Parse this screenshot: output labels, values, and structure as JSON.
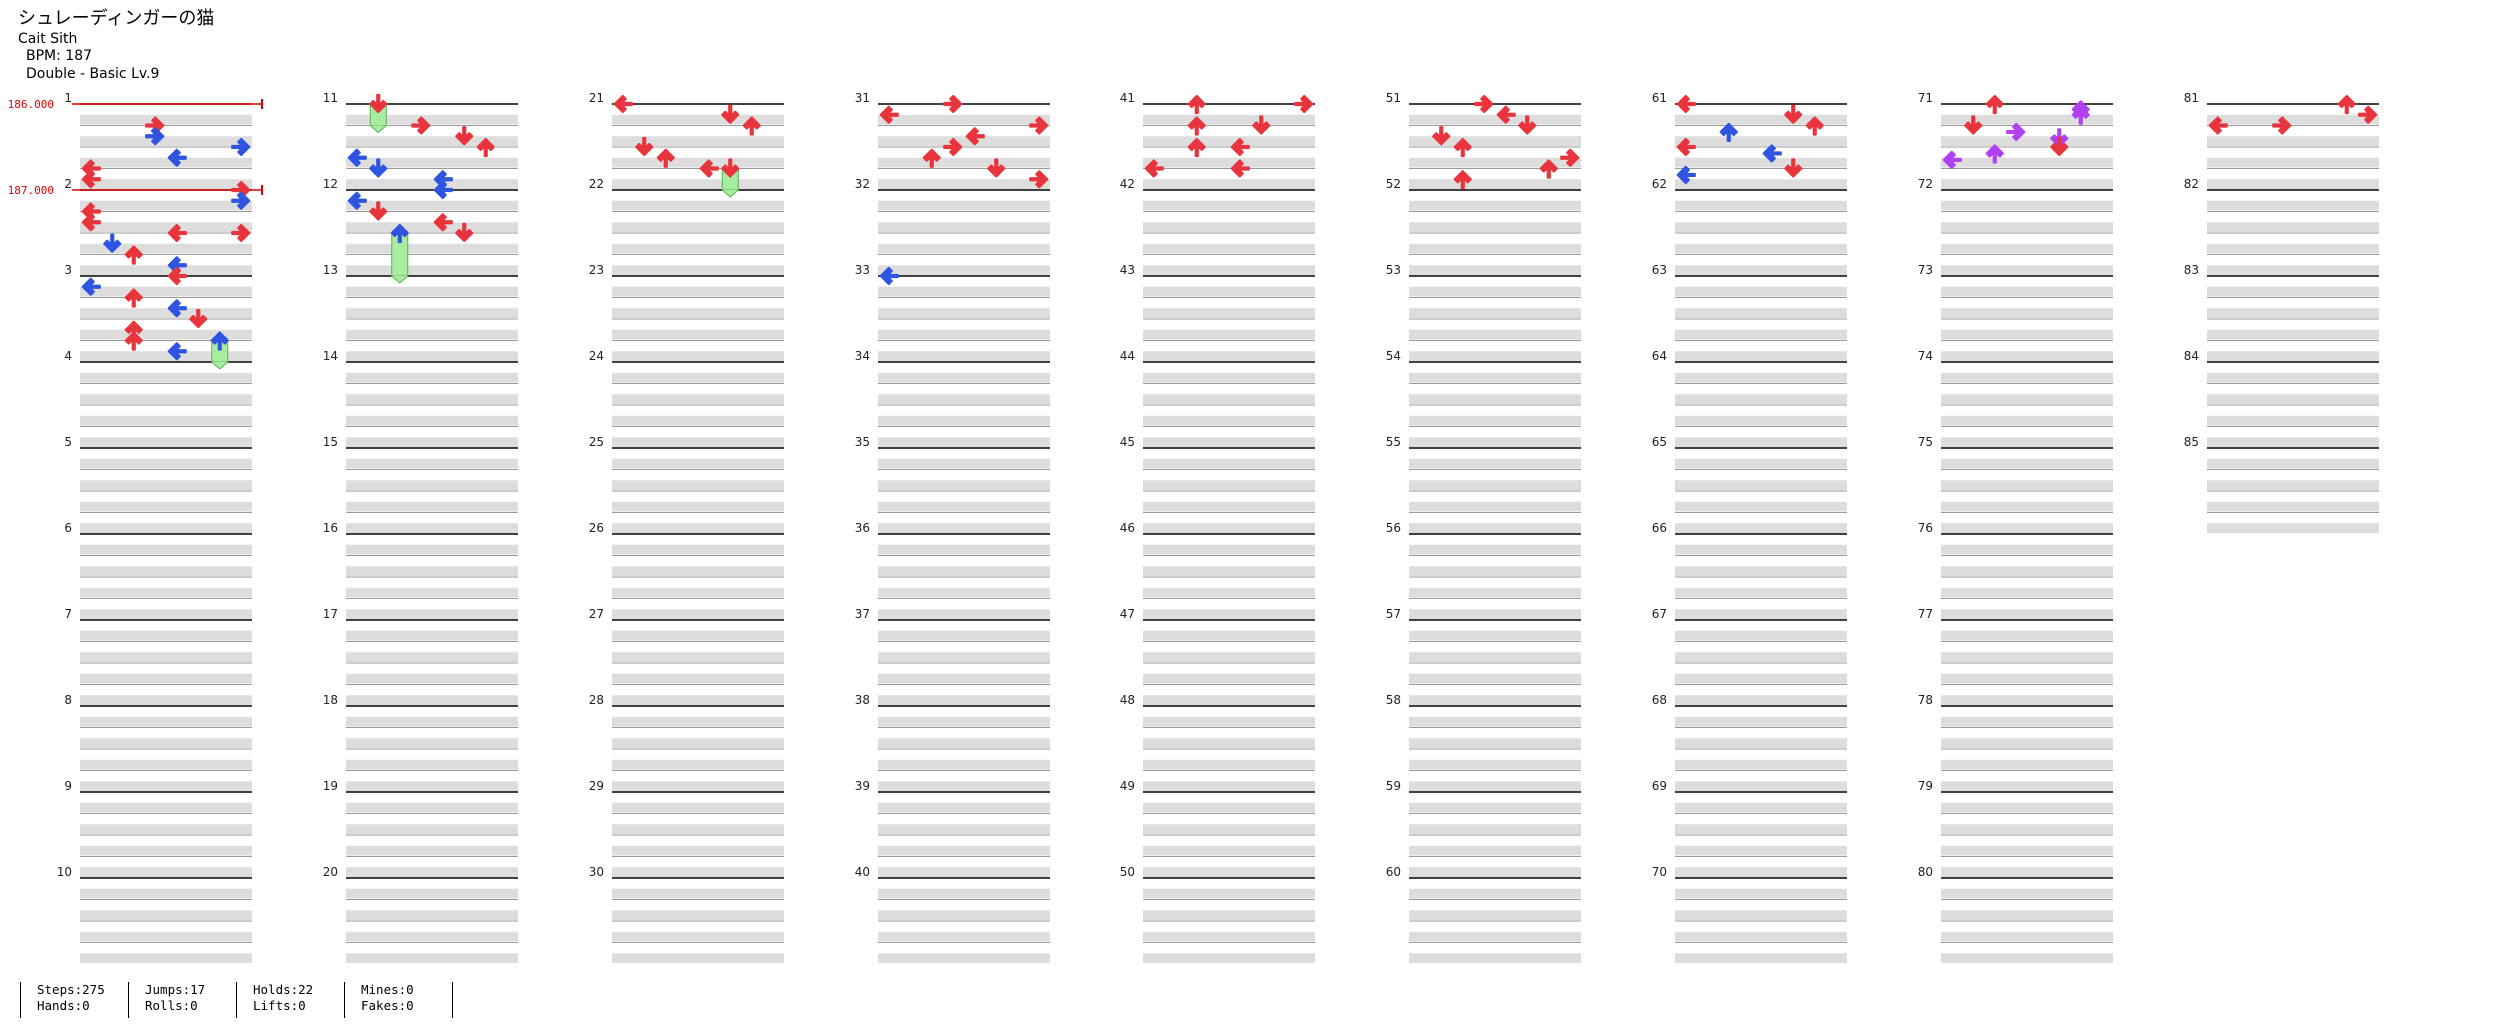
{
  "song": {
    "title": "シュレーディンガーの猫",
    "artist": "Cait Sith",
    "bpm_text": "BPM: 187",
    "chart_text": "Double - Basic  Lv.9"
  },
  "bpm_changes": [
    {
      "measure": 1,
      "value": "186.000"
    },
    {
      "measure": 2,
      "value": "187.000"
    }
  ],
  "measure_labels": [
    "1",
    "2",
    "3",
    "4",
    "5",
    "6",
    "7",
    "8",
    "9",
    "10",
    "11",
    "12",
    "13",
    "14",
    "15",
    "16",
    "17",
    "18",
    "19",
    "20",
    "21",
    "22",
    "23",
    "24",
    "25",
    "26",
    "27",
    "28",
    "29",
    "30",
    "31",
    "32",
    "33",
    "34",
    "35",
    "36",
    "37",
    "38",
    "39",
    "40",
    "41",
    "42",
    "43",
    "44",
    "45",
    "46",
    "47",
    "48",
    "49",
    "50",
    "51",
    "52",
    "53",
    "54",
    "55",
    "56",
    "57",
    "58",
    "59",
    "60",
    "61",
    "62",
    "63",
    "64",
    "65",
    "66",
    "67",
    "68",
    "69",
    "70",
    "71",
    "72",
    "73",
    "74",
    "75",
    "76",
    "77",
    "78",
    "79",
    "80",
    "81",
    "82",
    "83",
    "84",
    "85"
  ],
  "total_measures": 85,
  "columns": 8,
  "colors": {
    "quarter": "#e8343d",
    "eighth": "#2f55e0",
    "sixteenth": "#b040f0",
    "hold_fill": "#a8eca0",
    "hold_line": "#55b055",
    "band_dark": "#dddddd",
    "bpm_marker": "#dd0000"
  },
  "notes": [
    {
      "m": 1,
      "b": 1,
      "dir": "right",
      "q": 4
    },
    {
      "m": 1,
      "b": 1.5,
      "dir": "right",
      "q": 8
    },
    {
      "m": 1,
      "b": 2,
      "dir": "right",
      "q": 8
    },
    {
      "m": 1,
      "b": 2.5,
      "dir": "left",
      "q": 8
    },
    {
      "m": 1,
      "b": 3,
      "dir": "left",
      "q": 4
    },
    {
      "m": 1,
      "b": 3.5,
      "dir": "left",
      "q": 4
    },
    {
      "m": 2,
      "b": 0,
      "dir": "right",
      "q": 4
    },
    {
      "m": 2,
      "b": 0.5,
      "dir": "right",
      "q": 8
    },
    {
      "m": 2,
      "b": 1,
      "dir": "left",
      "q": 4
    },
    {
      "m": 2,
      "b": 1.5,
      "dir": "left",
      "q": 4
    },
    {
      "m": 2,
      "b": 2,
      "dir": "left",
      "q": 4
    },
    {
      "m": 2,
      "b": 2,
      "dir": "right",
      "q": 4
    },
    {
      "m": 2,
      "b": 2.5,
      "dir": "down",
      "q": 8
    },
    {
      "m": 2,
      "b": 3,
      "dir": "up",
      "q": 4
    },
    {
      "m": 2,
      "b": 3.5,
      "dir": "left",
      "q": 8
    },
    {
      "m": 3,
      "b": 0,
      "dir": "left",
      "q": 4
    },
    {
      "m": 3,
      "b": 0.5,
      "dir": "left",
      "q": 8
    },
    {
      "m": 3,
      "b": 1,
      "dir": "up",
      "q": 4
    },
    {
      "m": 3,
      "b": 1.5,
      "dir": "left",
      "q": 8
    },
    {
      "m": 3,
      "b": 2,
      "dir": "down",
      "q": 4
    },
    {
      "m": 3,
      "b": 2.5,
      "dir": "up",
      "q": 4
    },
    {
      "m": 3,
      "b": 3,
      "dir": "up",
      "q": 4
    },
    {
      "m": 3,
      "b": 3.5,
      "dir": "left",
      "q": 8
    },
    {
      "m": 3,
      "b": 3,
      "dir": "up",
      "q": 8,
      "hold": 0.5
    },
    {
      "m": 11,
      "b": 0,
      "dir": "down",
      "q": 4,
      "hold": 0.5
    },
    {
      "m": 11,
      "b": 1,
      "dir": "right",
      "q": 4
    },
    {
      "m": 11,
      "b": 1.5,
      "dir": "down",
      "q": 4
    },
    {
      "m": 11,
      "b": 2,
      "dir": "up",
      "q": 4
    },
    {
      "m": 11,
      "b": 2.5,
      "dir": "left",
      "q": 8
    },
    {
      "m": 11,
      "b": 3,
      "dir": "down",
      "q": 8
    },
    {
      "m": 11,
      "b": 3.5,
      "dir": "left",
      "q": 8
    },
    {
      "m": 12,
      "b": 0,
      "dir": "left",
      "q": 8
    },
    {
      "m": 12,
      "b": 0.5,
      "dir": "left",
      "q": 8
    },
    {
      "m": 12,
      "b": 1,
      "dir": "down",
      "q": 4
    },
    {
      "m": 12,
      "b": 1.5,
      "dir": "left",
      "q": 4
    },
    {
      "m": 12,
      "b": 2,
      "dir": "down",
      "q": 4
    },
    {
      "m": 12,
      "b": 2,
      "dir": "up",
      "q": 8,
      "hold": 1
    },
    {
      "m": 21,
      "b": 0,
      "dir": "left",
      "q": 4
    },
    {
      "m": 21,
      "b": 0.5,
      "dir": "down",
      "q": 4
    },
    {
      "m": 21,
      "b": 1,
      "dir": "up",
      "q": 4
    },
    {
      "m": 21,
      "b": 2,
      "dir": "down",
      "q": 4
    },
    {
      "m": 21,
      "b": 2.5,
      "dir": "up",
      "q": 4
    },
    {
      "m": 21,
      "b": 3,
      "dir": "left",
      "q": 4
    },
    {
      "m": 21,
      "b": 3,
      "dir": "down",
      "q": 4,
      "hold": 0.5
    },
    {
      "m": 31,
      "b": 0,
      "dir": "right",
      "q": 4
    },
    {
      "m": 31,
      "b": 0.5,
      "dir": "left",
      "q": 4
    },
    {
      "m": 31,
      "b": 1,
      "dir": "right",
      "q": 4
    },
    {
      "m": 31,
      "b": 1.5,
      "dir": "left",
      "q": 4
    },
    {
      "m": 31,
      "b": 2,
      "dir": "right",
      "q": 4
    },
    {
      "m": 31,
      "b": 2.5,
      "dir": "up",
      "q": 4
    },
    {
      "m": 31,
      "b": 3,
      "dir": "down",
      "q": 4
    },
    {
      "m": 31,
      "b": 3.5,
      "dir": "right",
      "q": 4
    },
    {
      "m": 33,
      "b": 0,
      "dir": "left",
      "q": 8
    },
    {
      "m": 41,
      "b": 0,
      "dir": "up",
      "q": 4
    },
    {
      "m": 41,
      "b": 0,
      "dir": "right",
      "q": 4
    },
    {
      "m": 41,
      "b": 1,
      "dir": "down",
      "q": 4
    },
    {
      "m": 41,
      "b": 1,
      "dir": "up",
      "q": 4
    },
    {
      "m": 41,
      "b": 2,
      "dir": "up",
      "q": 4
    },
    {
      "m": 41,
      "b": 2,
      "dir": "left",
      "q": 4
    },
    {
      "m": 41,
      "b": 3,
      "dir": "left",
      "q": 4
    },
    {
      "m": 41,
      "b": 3,
      "dir": "left",
      "q": 4
    },
    {
      "m": 51,
      "b": 0,
      "dir": "right",
      "q": 4
    },
    {
      "m": 51,
      "b": 0.5,
      "dir": "left",
      "q": 4
    },
    {
      "m": 51,
      "b": 1,
      "dir": "down",
      "q": 4
    },
    {
      "m": 51,
      "b": 1.5,
      "dir": "down",
      "q": 4
    },
    {
      "m": 51,
      "b": 2,
      "dir": "up",
      "q": 4
    },
    {
      "m": 51,
      "b": 2.5,
      "dir": "right",
      "q": 4
    },
    {
      "m": 51,
      "b": 3,
      "dir": "up",
      "q": 4
    },
    {
      "m": 51,
      "b": 3.5,
      "dir": "up",
      "q": 4
    },
    {
      "m": 61,
      "b": 0,
      "dir": "left",
      "q": 4
    },
    {
      "m": 61,
      "b": 0.5,
      "dir": "down",
      "q": 4
    },
    {
      "m": 61,
      "b": 1,
      "dir": "up",
      "q": 4
    },
    {
      "m": 61,
      "b": 1.3,
      "dir": "up",
      "q": 8
    },
    {
      "m": 61,
      "b": 2,
      "dir": "left",
      "q": 4
    },
    {
      "m": 61,
      "b": 2.3,
      "dir": "left",
      "q": 8
    },
    {
      "m": 61,
      "b": 3,
      "dir": "down",
      "q": 4
    },
    {
      "m": 61,
      "b": 3.3,
      "dir": "left",
      "q": 8
    },
    {
      "m": 71,
      "b": 0,
      "dir": "up",
      "q": 4
    },
    {
      "m": 71,
      "b": 0.25,
      "dir": "up",
      "q": 16
    },
    {
      "m": 71,
      "b": 0.5,
      "dir": "up",
      "q": 16
    },
    {
      "m": 71,
      "b": 1,
      "dir": "down",
      "q": 4
    },
    {
      "m": 71,
      "b": 1.3,
      "dir": "right",
      "q": 16
    },
    {
      "m": 71,
      "b": 1.6,
      "dir": "down",
      "q": 16
    },
    {
      "m": 71,
      "b": 2,
      "dir": "down",
      "q": 4
    },
    {
      "m": 71,
      "b": 2.3,
      "dir": "up",
      "q": 16
    },
    {
      "m": 71,
      "b": 2.6,
      "dir": "left",
      "q": 16
    },
    {
      "m": 81,
      "b": 0,
      "dir": "up",
      "q": 4
    },
    {
      "m": 81,
      "b": 0.5,
      "dir": "right",
      "q": 4
    },
    {
      "m": 81,
      "b": 1,
      "dir": "right",
      "q": 4
    },
    {
      "m": 81,
      "b": 1,
      "dir": "left",
      "q": 4
    }
  ],
  "stats": {
    "steps": "Steps:275",
    "hands": "Hands:0",
    "jumps": "Jumps:17",
    "rolls": "Rolls:0",
    "holds": "Holds:22",
    "lifts": "Lifts:0",
    "mines": "Mines:0",
    "fakes": "Fakes:0"
  }
}
